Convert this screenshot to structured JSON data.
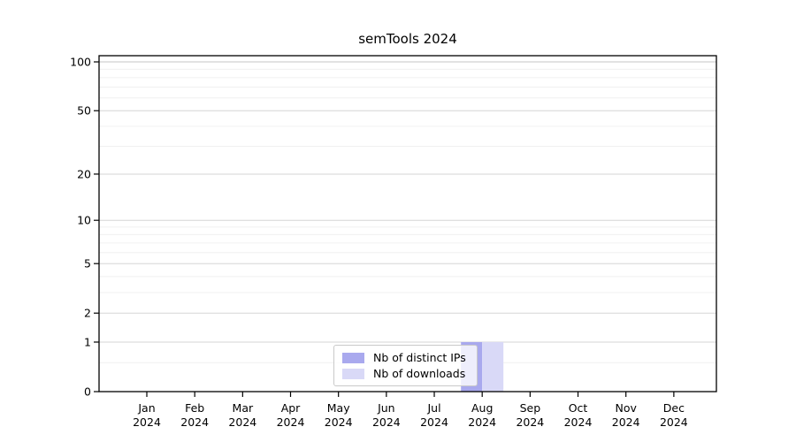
{
  "chart_data": {
    "type": "bar",
    "title": "semTools 2024",
    "x_months": [
      "Jan",
      "Feb",
      "Mar",
      "Apr",
      "May",
      "Jun",
      "Jul",
      "Aug",
      "Sep",
      "Oct",
      "Nov",
      "Dec"
    ],
    "x_year": "2024",
    "series": [
      {
        "name": "Nb of distinct IPs",
        "color": "#a9a9ee",
        "values": [
          0,
          0,
          0,
          0,
          0,
          0,
          0,
          1,
          0,
          0,
          0,
          0
        ]
      },
      {
        "name": "Nb of downloads",
        "color": "#d9d9f7",
        "values": [
          0,
          0,
          0,
          0,
          0,
          0,
          0,
          1,
          0,
          0,
          0,
          0
        ]
      }
    ],
    "y_axis": {
      "scale": "log10(1+x)",
      "ticks": [
        0,
        1,
        2,
        5,
        10,
        20,
        50,
        100
      ],
      "minor_ticks": [
        0.5,
        3,
        4,
        6,
        7,
        8,
        9,
        30,
        40,
        60,
        70,
        80,
        90
      ],
      "max": 110
    },
    "grid": "on",
    "legend_position": "bottom-center",
    "colors": {
      "major_grid": "#d6d6d6",
      "top_grid": "#c5c5c5",
      "minor_grid": "#f0f0f0",
      "axis": "#000000",
      "text": "#000000",
      "background": "#ffffff"
    }
  }
}
